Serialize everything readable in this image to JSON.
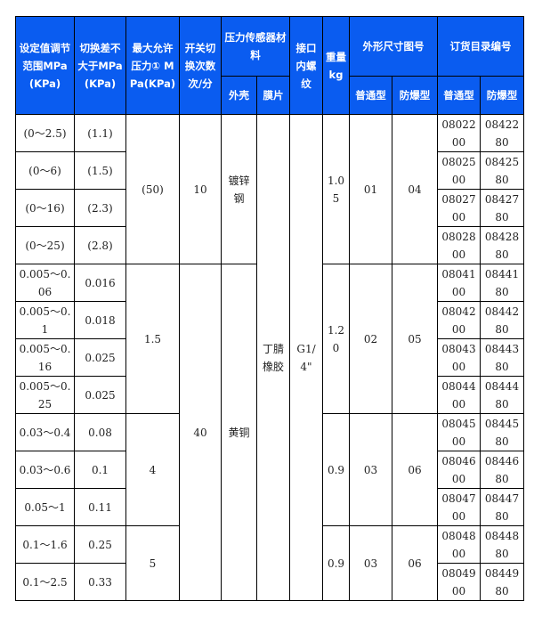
{
  "header": {
    "range": "设定值调节范围MPa(KPa)",
    "diff": "切换差不大于MPa(KPa)",
    "max_pressure": "最大允许压力① MPa(KPa)",
    "switch_count": "开关切换次数次/分",
    "sensor_material": "压力传感器材料",
    "shell": "外壳",
    "membrane": "膜片",
    "thread": "接口内螺纹",
    "weight": "重量kg",
    "dims": "外形尺寸图号",
    "order": "订货目录编号",
    "normal": "普通型",
    "explosion": "防爆型",
    "order_normal": "普通型",
    "order_explosion": "防爆型"
  },
  "rows": [
    {
      "range": "(0～2.5)",
      "diff": "(1.1)",
      "order_normal": "0802200",
      "order_explosion": "0842280"
    },
    {
      "range": "(0～6)",
      "diff": "(1.5)",
      "order_normal": "0802500",
      "order_explosion": "0842580"
    },
    {
      "range": "(0～16)",
      "diff": "(2.3)",
      "order_normal": "0802700",
      "order_explosion": "0842780"
    },
    {
      "range": "(0～25)",
      "diff": "(2.8)",
      "order_normal": "0802800",
      "order_explosion": "0842880"
    },
    {
      "range": "0.005～0.06",
      "diff": "0.016",
      "order_normal": "0804100",
      "order_explosion": "0844180"
    },
    {
      "range": "0.005～0.1",
      "diff": "0.018",
      "order_normal": "0804200",
      "order_explosion": "0844280"
    },
    {
      "range": "0.005～0.16",
      "diff": "0.025",
      "order_normal": "0804300",
      "order_explosion": "0844380"
    },
    {
      "range": "0.005～0.25",
      "diff": "0.025",
      "order_normal": "0804400",
      "order_explosion": "0844480"
    },
    {
      "range": "0.03～0.4",
      "diff": "0.08",
      "order_normal": "0804500",
      "order_explosion": "0844580"
    },
    {
      "range": "0.03～0.6",
      "diff": "0.1",
      "order_normal": "0804600",
      "order_explosion": "0844680"
    },
    {
      "range": "0.05～1",
      "diff": "0.11",
      "order_normal": "0804700",
      "order_explosion": "0844780"
    },
    {
      "range": "0.1～1.6",
      "diff": "0.25",
      "order_normal": "0804800",
      "order_explosion": "0844880"
    },
    {
      "range": "0.1～2.5",
      "diff": "0.33",
      "order_normal": "0804900",
      "order_explosion": "0844980"
    }
  ],
  "max_pressure_groups": [
    {
      "value": "(50)",
      "span": 4
    },
    {
      "value": "1.5",
      "span": 4
    },
    {
      "value": "4",
      "span": 3
    },
    {
      "value": "5",
      "span": 2
    }
  ],
  "switch_groups": [
    {
      "value": "10",
      "span": 4
    },
    {
      "value": "40",
      "span": 9
    }
  ],
  "shell_groups": [
    {
      "value": "镀锌钢",
      "span": 4
    },
    {
      "value": "黄铜",
      "span": 9
    }
  ],
  "membrane": "丁腈橡胶",
  "thread": "G1/4\"",
  "weight_groups": [
    {
      "value": "1.05",
      "span": 4
    },
    {
      "value": "1.20",
      "span": 4
    },
    {
      "value": "0.9",
      "span": 3
    },
    {
      "value": "0.9",
      "span": 2
    }
  ],
  "dims_groups": [
    {
      "normal": "01",
      "explosion": "04",
      "span": 4
    },
    {
      "normal": "02",
      "explosion": "05",
      "span": 4
    },
    {
      "normal": "03",
      "explosion": "06",
      "span": 3
    },
    {
      "normal": "03",
      "explosion": "06",
      "span": 2
    }
  ],
  "colors": {
    "header_bg": "#0a5cf0",
    "header_text": "#ffffff"
  }
}
